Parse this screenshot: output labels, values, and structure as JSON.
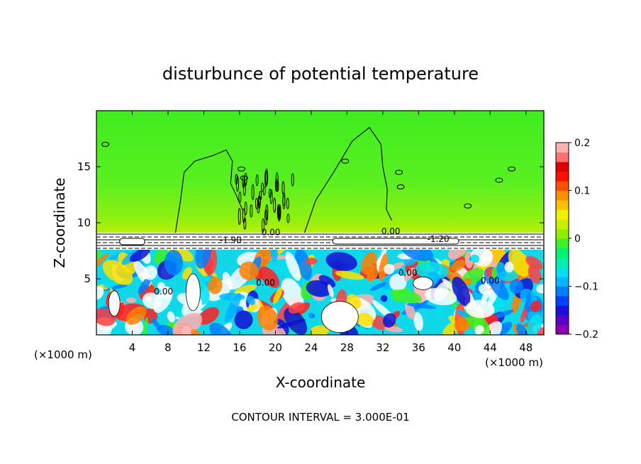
{
  "chart_data": {
    "type": "heatmap",
    "title": "disturbunce of potential temperature",
    "xlabel": "X-coordinate",
    "ylabel": "Z-coordinate",
    "x_unit": "(×1000 m)",
    "xlim": [
      0,
      50
    ],
    "ylim": [
      0,
      20
    ],
    "x_ticks": [
      4,
      8,
      12,
      16,
      20,
      24,
      28,
      32,
      36,
      40,
      44,
      48
    ],
    "y_ticks": [
      5,
      10,
      15
    ],
    "colorbar": {
      "range": [
        -0.2,
        0.2
      ],
      "tick_values": [
        0.2,
        0.1,
        0,
        -0.1,
        -0.2
      ],
      "tick_labels": [
        "0.2",
        "0.1",
        "0",
        "−0.1",
        "−0.2"
      ],
      "colors": [
        "#8a00b8",
        "#5a00c8",
        "#1a10d8",
        "#0040ff",
        "#0080ff",
        "#00b8ff",
        "#00e0f0",
        "#00f0b0",
        "#00f070",
        "#40f020",
        "#90f000",
        "#c8f000",
        "#f0f000",
        "#ffc000",
        "#ff9000",
        "#ff5000",
        "#ff1000",
        "#e00000",
        "#ff7070",
        "#ffb0b0"
      ]
    },
    "contour_labels": [
      {
        "text": "0.00",
        "x": 19.5,
        "z": 8.9
      },
      {
        "text": "-1.90",
        "x": 15.0,
        "z": 8.2
      },
      {
        "text": "0.00",
        "x": 32.9,
        "z": 9.0
      },
      {
        "text": "-1.20",
        "x": 38.2,
        "z": 8.3
      },
      {
        "text": "0.00",
        "x": 7.5,
        "z": 3.6
      },
      {
        "text": "0.00",
        "x": 18.9,
        "z": 4.4
      },
      {
        "text": "0.00",
        "x": 34.8,
        "z": 5.3
      },
      {
        "text": "0.00",
        "x": 44.0,
        "z": 4.6
      }
    ],
    "annotation": "CONTOUR INTERVAL = 3.000E-01"
  }
}
